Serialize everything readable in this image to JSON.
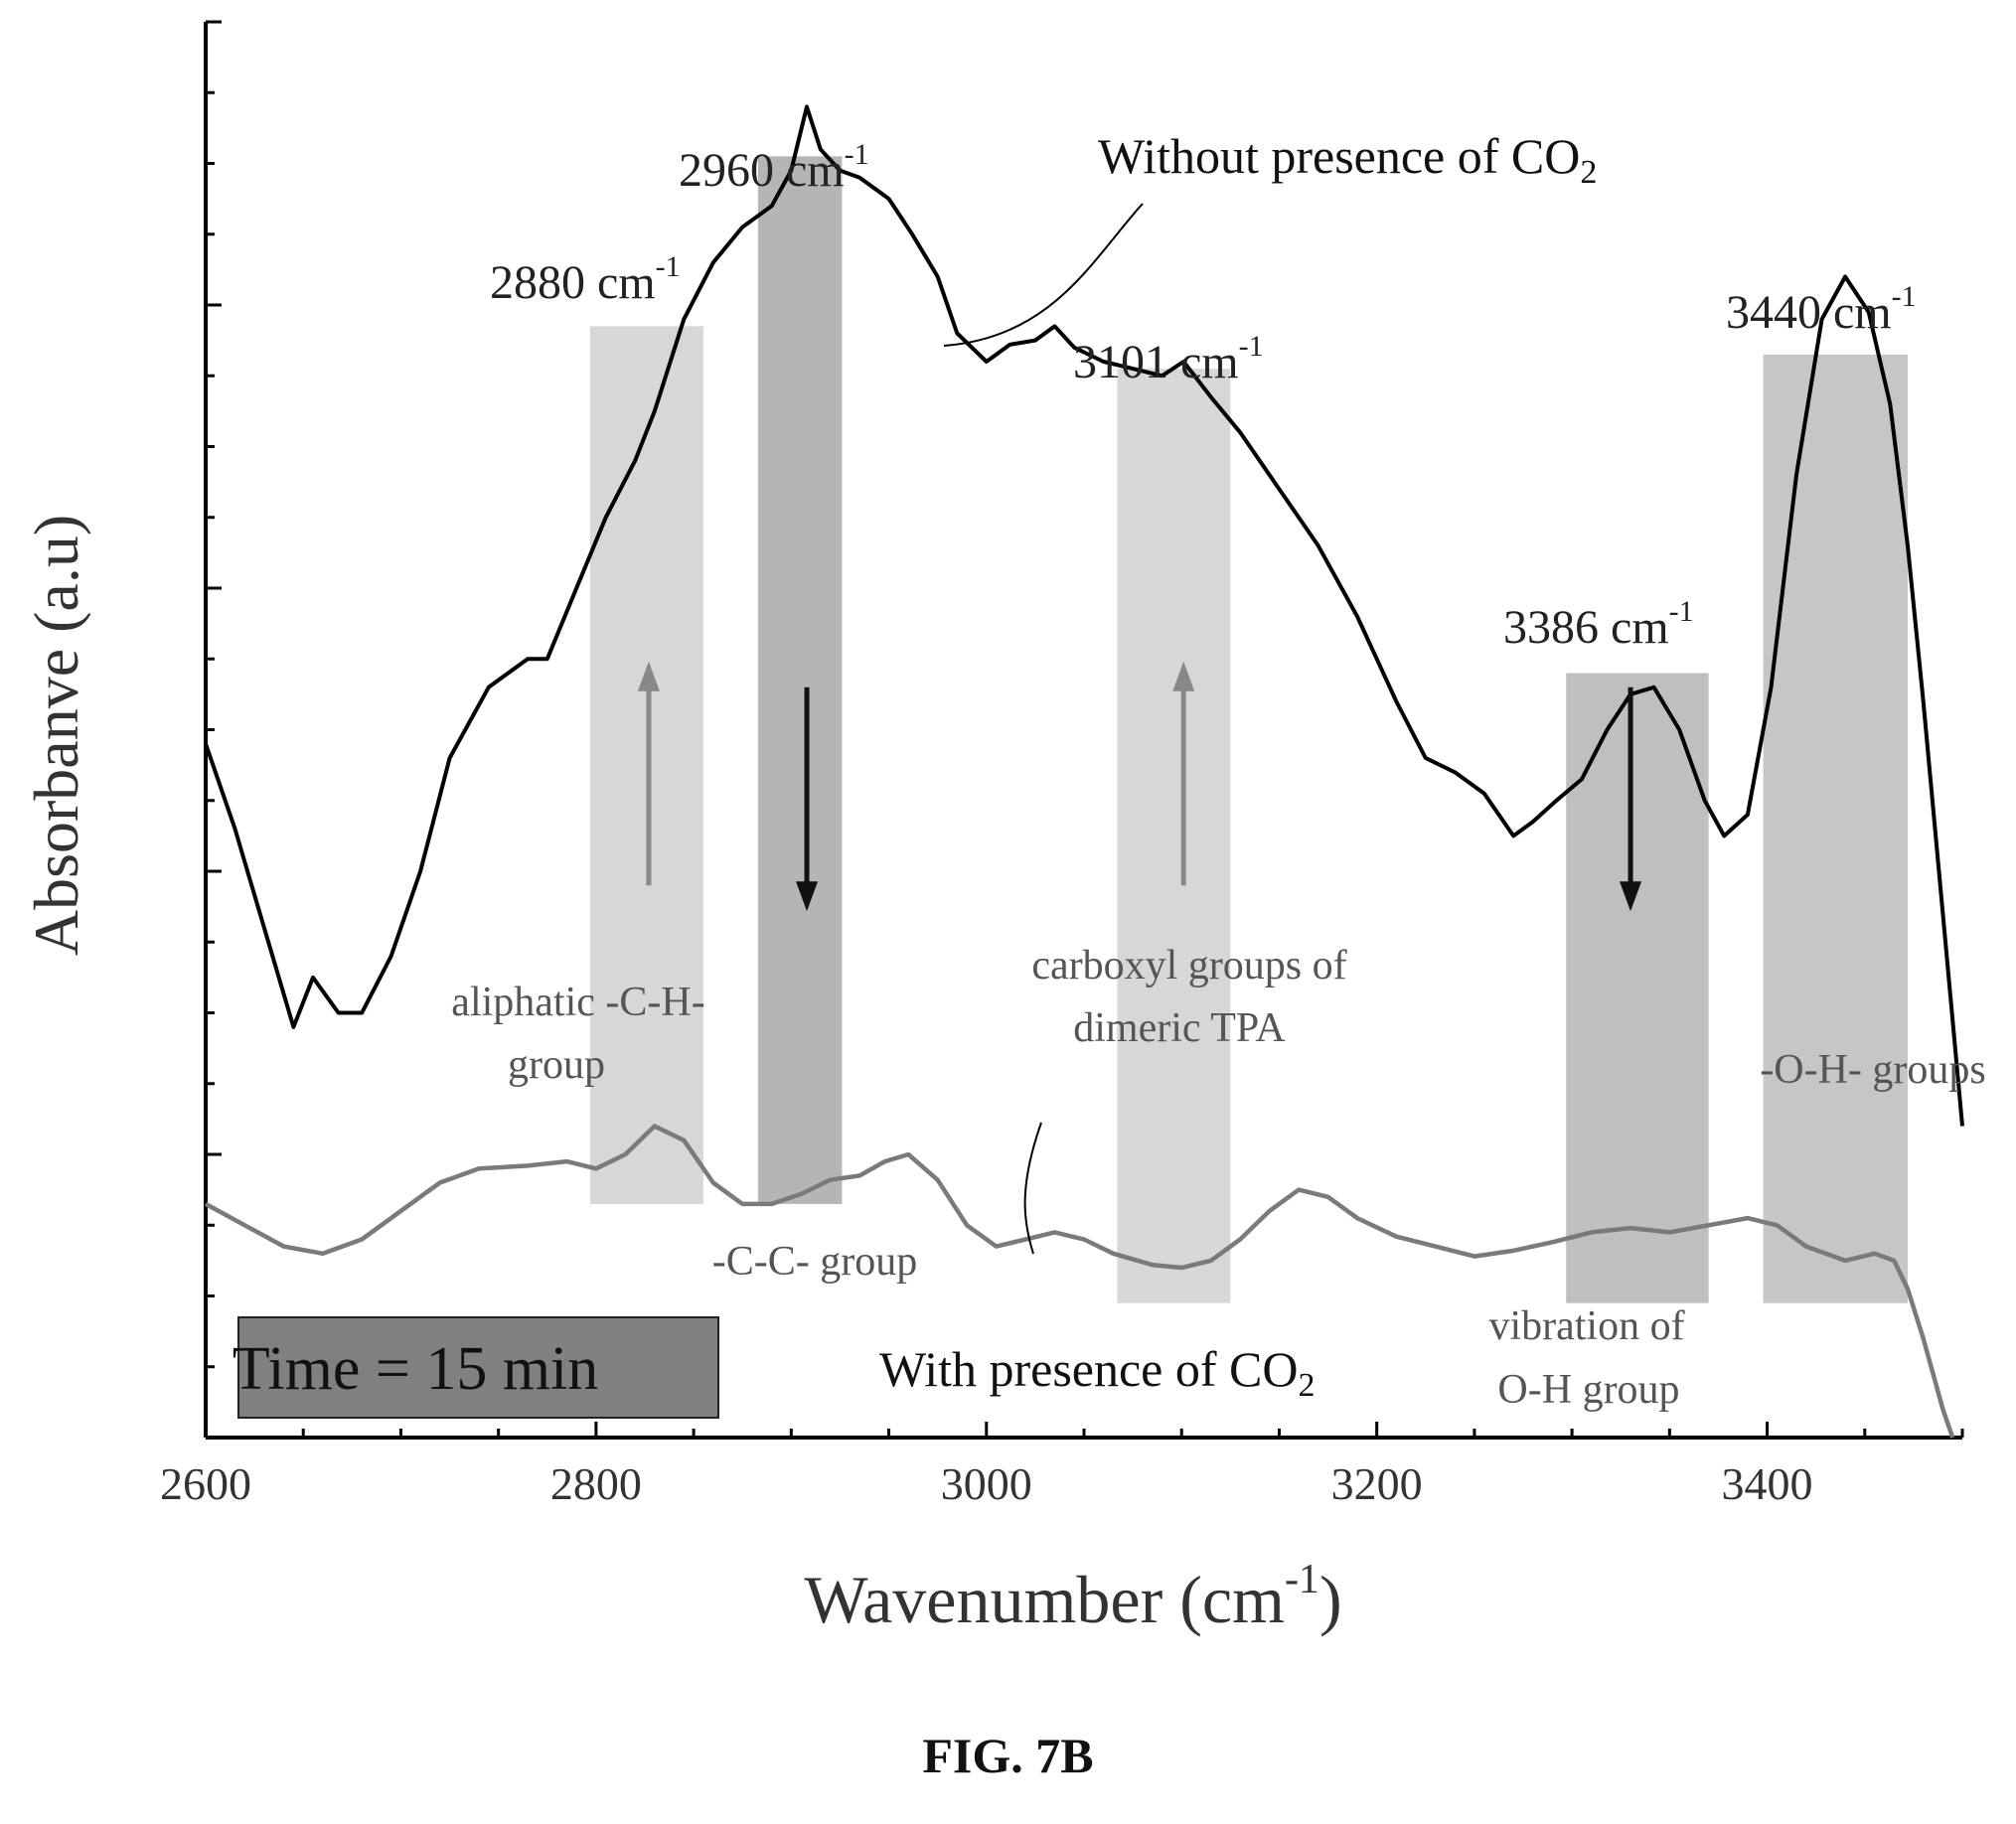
{
  "caption": "FIG. 7B",
  "chart_data": {
    "type": "line",
    "xlabel": "Wavenumber (cm",
    "xlabel_sup": "-1",
    "xlabel_end": ")",
    "ylabel": "Absorbanve (a.u)",
    "xlim": [
      2600,
      3500
    ],
    "ylim": [
      0,
      10
    ],
    "xticks": [
      "2600",
      "2800",
      "3000",
      "3200",
      "3400"
    ],
    "grid": false,
    "series": [
      {
        "name": "Without presence of CO",
        "name_sub": "2",
        "color": "#000000",
        "points": [
          [
            2600,
            4.9
          ],
          [
            2615,
            4.3
          ],
          [
            2630,
            3.6
          ],
          [
            2645,
            2.9
          ],
          [
            2655,
            3.25
          ],
          [
            2668,
            3.0
          ],
          [
            2680,
            3.0
          ],
          [
            2695,
            3.4
          ],
          [
            2710,
            4.0
          ],
          [
            2725,
            4.8
          ],
          [
            2745,
            5.3
          ],
          [
            2765,
            5.5
          ],
          [
            2775,
            5.5
          ],
          [
            2790,
            6.0
          ],
          [
            2805,
            6.5
          ],
          [
            2820,
            6.9
          ],
          [
            2830,
            7.25
          ],
          [
            2845,
            7.9
          ],
          [
            2860,
            8.3
          ],
          [
            2875,
            8.55
          ],
          [
            2890,
            8.7
          ],
          [
            2900,
            8.95
          ],
          [
            2908,
            9.4
          ],
          [
            2915,
            9.1
          ],
          [
            2925,
            8.95
          ],
          [
            2935,
            8.9
          ],
          [
            2950,
            8.75
          ],
          [
            2962,
            8.5
          ],
          [
            2975,
            8.2
          ],
          [
            2985,
            7.8
          ],
          [
            3000,
            7.6
          ],
          [
            3012,
            7.72
          ],
          [
            3025,
            7.75
          ],
          [
            3035,
            7.85
          ],
          [
            3045,
            7.7
          ],
          [
            3060,
            7.6
          ],
          [
            3075,
            7.55
          ],
          [
            3090,
            7.5
          ],
          [
            3101,
            7.6
          ],
          [
            3115,
            7.35
          ],
          [
            3130,
            7.1
          ],
          [
            3150,
            6.7
          ],
          [
            3170,
            6.3
          ],
          [
            3190,
            5.8
          ],
          [
            3210,
            5.2
          ],
          [
            3225,
            4.8
          ],
          [
            3240,
            4.7
          ],
          [
            3255,
            4.55
          ],
          [
            3270,
            4.25
          ],
          [
            3280,
            4.35
          ],
          [
            3292,
            4.5
          ],
          [
            3305,
            4.65
          ],
          [
            3318,
            5.0
          ],
          [
            3330,
            5.25
          ],
          [
            3342,
            5.3
          ],
          [
            3355,
            5.0
          ],
          [
            3368,
            4.5
          ],
          [
            3378,
            4.25
          ],
          [
            3390,
            4.4
          ],
          [
            3402,
            5.3
          ],
          [
            3415,
            6.8
          ],
          [
            3428,
            7.9
          ],
          [
            3440,
            8.2
          ],
          [
            3452,
            7.95
          ],
          [
            3463,
            7.3
          ],
          [
            3472,
            6.3
          ],
          [
            3480,
            5.2
          ],
          [
            3490,
            3.7
          ],
          [
            3500,
            2.2
          ]
        ]
      },
      {
        "name": "With presence of CO",
        "name_sub": "2",
        "color": "#7a7a7a",
        "points": [
          [
            2600,
            1.65
          ],
          [
            2620,
            1.5
          ],
          [
            2640,
            1.35
          ],
          [
            2660,
            1.3
          ],
          [
            2680,
            1.4
          ],
          [
            2700,
            1.6
          ],
          [
            2720,
            1.8
          ],
          [
            2740,
            1.9
          ],
          [
            2765,
            1.92
          ],
          [
            2785,
            1.95
          ],
          [
            2800,
            1.9
          ],
          [
            2815,
            2.0
          ],
          [
            2830,
            2.2
          ],
          [
            2845,
            2.1
          ],
          [
            2860,
            1.8
          ],
          [
            2875,
            1.65
          ],
          [
            2890,
            1.65
          ],
          [
            2905,
            1.72
          ],
          [
            2920,
            1.82
          ],
          [
            2935,
            1.85
          ],
          [
            2948,
            1.95
          ],
          [
            2960,
            2.0
          ],
          [
            2975,
            1.82
          ],
          [
            2990,
            1.5
          ],
          [
            3005,
            1.35
          ],
          [
            3020,
            1.4
          ],
          [
            3035,
            1.45
          ],
          [
            3050,
            1.4
          ],
          [
            3065,
            1.3
          ],
          [
            3085,
            1.22
          ],
          [
            3100,
            1.2
          ],
          [
            3115,
            1.25
          ],
          [
            3130,
            1.4
          ],
          [
            3145,
            1.6
          ],
          [
            3160,
            1.75
          ],
          [
            3175,
            1.7
          ],
          [
            3190,
            1.55
          ],
          [
            3210,
            1.42
          ],
          [
            3230,
            1.35
          ],
          [
            3250,
            1.28
          ],
          [
            3270,
            1.32
          ],
          [
            3290,
            1.38
          ],
          [
            3310,
            1.45
          ],
          [
            3330,
            1.48
          ],
          [
            3350,
            1.45
          ],
          [
            3370,
            1.5
          ],
          [
            3390,
            1.55
          ],
          [
            3405,
            1.5
          ],
          [
            3420,
            1.35
          ],
          [
            3440,
            1.25
          ],
          [
            3455,
            1.3
          ],
          [
            3465,
            1.25
          ],
          [
            3472,
            1.05
          ],
          [
            3480,
            0.7
          ],
          [
            3490,
            0.2
          ],
          [
            3495,
            0.0
          ]
        ]
      }
    ],
    "bands": [
      {
        "x0": 2797,
        "x1": 2855,
        "y0": 1.65,
        "y1": 7.85,
        "shade": "#d0d0d0"
      },
      {
        "x0": 2883,
        "x1": 2926,
        "y0": 1.65,
        "y1": 9.05,
        "shade": "#a8a8a8"
      },
      {
        "x0": 3067,
        "x1": 3125,
        "y0": 0.95,
        "y1": 7.55,
        "shade": "#d0d0d0"
      },
      {
        "x0": 3297,
        "x1": 3370,
        "y0": 0.95,
        "y1": 5.4,
        "shade": "#b4b4b4"
      },
      {
        "x0": 3398,
        "x1": 3472,
        "y0": 0.95,
        "y1": 7.65,
        "shade": "#bcbcbc"
      }
    ],
    "arrows": [
      {
        "x": 2827,
        "direction": "up",
        "color": "#888888"
      },
      {
        "x": 2908,
        "direction": "down",
        "color": "#111111"
      },
      {
        "x": 3101,
        "direction": "up",
        "color": "#888888"
      },
      {
        "x": 3330,
        "direction": "down",
        "color": "#111111"
      }
    ],
    "peak_labels": [
      {
        "main": "2880 cm",
        "sup": "-1"
      },
      {
        "main": "2960 cm",
        "sup": "-1"
      },
      {
        "main": "3101 cm",
        "sup": "-1"
      },
      {
        "main": "3386 cm",
        "sup": "-1"
      },
      {
        "main": "3440 cm",
        "sup": "-1"
      }
    ],
    "annotations": {
      "aliphatic_line1": "aliphatic -C-H-",
      "aliphatic_line2": "group",
      "cc_group": "-C-C- group",
      "carboxyl_line1": "carboxyl groups of",
      "carboxyl_line2": "dimeric TPA",
      "vibration_line1": "vibration of",
      "vibration_line2": "O-H group",
      "oh_groups": "-O-H- groups"
    },
    "time_box": "Time = 15 min"
  }
}
